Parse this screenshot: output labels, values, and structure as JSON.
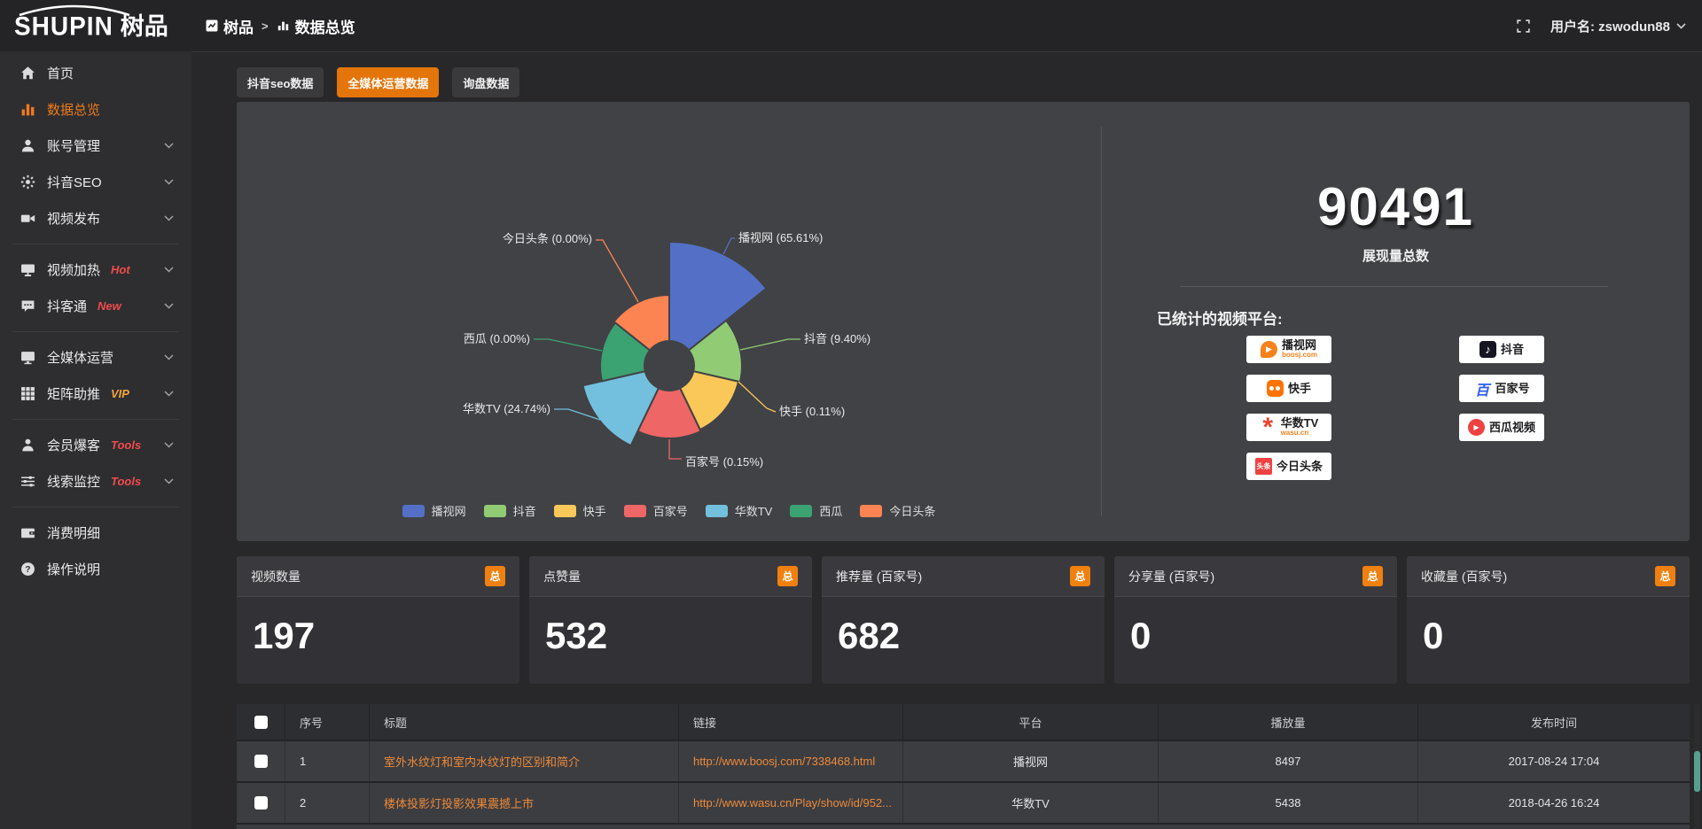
{
  "topbar": {
    "logo_en": "SHUPIN",
    "logo_cn": "树品",
    "breadcrumb": [
      {
        "label": "树品"
      },
      {
        "label": "数据总览"
      }
    ],
    "separator": ">",
    "username": "用户名: zswodun88"
  },
  "sidebar": {
    "items": [
      {
        "label": "首页",
        "icon": "home-icon"
      },
      {
        "label": "数据总览",
        "icon": "bar-chart-icon",
        "active": true
      },
      {
        "label": "账号管理",
        "icon": "user-icon",
        "expandable": true
      },
      {
        "label": "抖音SEO",
        "icon": "gear-icon",
        "expandable": true
      },
      {
        "label": "视频发布",
        "icon": "video-camera-icon",
        "expandable": true
      },
      {
        "label": "视频加热",
        "icon": "screen-icon",
        "badge": "Hot",
        "expandable": true
      },
      {
        "label": "抖客通",
        "icon": "chat-icon",
        "badge": "New",
        "expandable": true
      },
      {
        "label": "全媒体运营",
        "icon": "monitor-icon",
        "expandable": true
      },
      {
        "label": "矩阵助推",
        "icon": "grid-icon",
        "badge": "VIP",
        "expandable": true
      },
      {
        "label": "会员爆客",
        "icon": "member-icon",
        "badge": "Tools",
        "expandable": true
      },
      {
        "label": "线索监控",
        "icon": "sliders-icon",
        "badge": "Tools",
        "expandable": true
      },
      {
        "label": "消费明细",
        "icon": "wallet-icon"
      },
      {
        "label": "操作说明",
        "icon": "help-icon"
      }
    ]
  },
  "tabs": [
    {
      "label": "抖音seo数据",
      "active": false
    },
    {
      "label": "全媒体运营数据",
      "active": true
    },
    {
      "label": "询盘数据",
      "active": false
    }
  ],
  "chart_data": {
    "type": "pie",
    "variant": "nightingale-rose",
    "labels": [
      "播视网",
      "抖音",
      "快手",
      "百家号",
      "华数TV",
      "西瓜",
      "今日头条"
    ],
    "values_pct": [
      65.61,
      9.4,
      0.11,
      0.15,
      24.74,
      0.0,
      0.0
    ],
    "colors": [
      "#5470c6",
      "#91cc75",
      "#fac858",
      "#ee6666",
      "#73c0de",
      "#3ba272",
      "#fc8452"
    ],
    "legend_position": "bottom",
    "radii_hint": [
      140,
      82,
      80,
      82,
      100,
      78,
      80
    ]
  },
  "summary": {
    "total_value": "90491",
    "total_label": "展现量总数",
    "platforms_label": "已统计的视频平台:",
    "platforms_left": [
      {
        "name": "播视网",
        "sub": "boosj.com"
      },
      {
        "name": "快手",
        "sub": ""
      },
      {
        "name": "华数TV",
        "sub": "wasu.cn"
      },
      {
        "name": "今日头条",
        "sub": ""
      }
    ],
    "platforms_right": [
      {
        "name": "抖音",
        "sub": ""
      },
      {
        "name": "百家号",
        "sub": ""
      },
      {
        "name": "西瓜视频",
        "sub": ""
      }
    ]
  },
  "stat_cards": [
    {
      "title": "视频数量",
      "badge": "总",
      "value": "197"
    },
    {
      "title": "点赞量",
      "badge": "总",
      "value": "532"
    },
    {
      "title": "推荐量 (百家号)",
      "badge": "总",
      "value": "682"
    },
    {
      "title": "分享量 (百家号)",
      "badge": "总",
      "value": "0"
    },
    {
      "title": "收藏量 (百家号)",
      "badge": "总",
      "value": "0"
    }
  ],
  "table": {
    "headers": [
      "序号",
      "标题",
      "链接",
      "平台",
      "播放量",
      "发布时间"
    ],
    "rows": [
      {
        "index": "1",
        "title": "室外水纹灯和室内水纹灯的区别和简介",
        "link": "http://www.boosj.com/7338468.html",
        "platform": "播视网",
        "views": "8497",
        "time": "2017-08-24 17:04"
      },
      {
        "index": "2",
        "title": "楼体投影灯投影效果震撼上市",
        "link": "http://www.wasu.cn/Play/show/id/952...",
        "platform": "华数TV",
        "views": "5438",
        "time": "2018-04-26 16:24"
      }
    ]
  }
}
